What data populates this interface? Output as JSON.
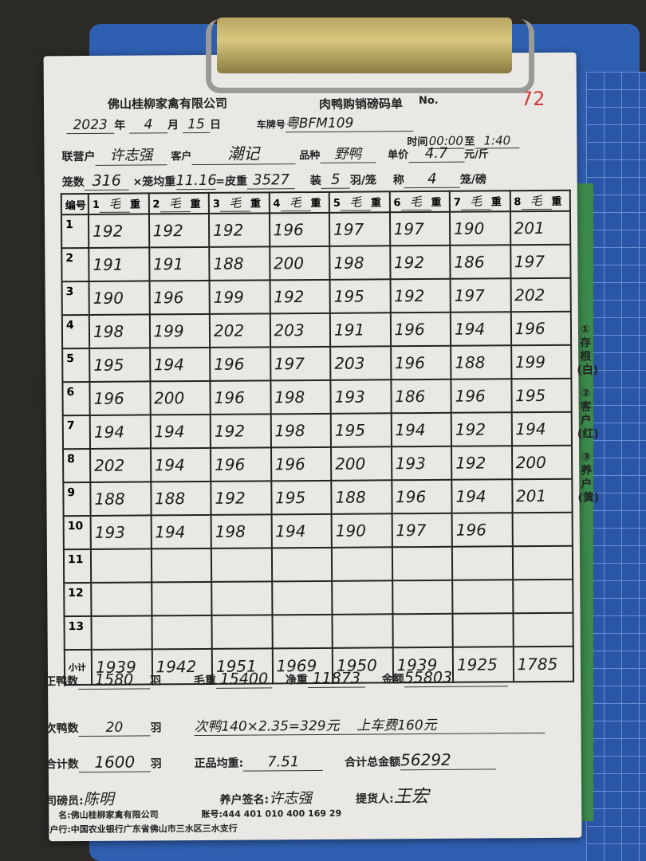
{
  "form": {
    "company": "佛山桂柳家禽有限公司",
    "title": "肉鸭购销磅码单",
    "serial_prefix": "No.",
    "serial_visible": "72",
    "labels": {
      "year": "年",
      "month": "月",
      "day": "日",
      "plate": "车牌号",
      "time": "时间",
      "to": "至",
      "partner": "联营户",
      "customer": "客户",
      "breed": "品种",
      "unit_price": "单价",
      "price_unit": "元/斤",
      "cages": "笼数",
      "avg_cage": "×笼均重",
      "tare": "=皮重",
      "load": "装",
      "per_cage": "羽/笼",
      "weigh": "称",
      "cage_per_weigh": "笼/磅"
    },
    "date": {
      "year": "2023",
      "month": "4",
      "day": "15"
    },
    "plate": "粤BFM109",
    "time_from": "00:00",
    "time_to": "1:40",
    "partner": "许志强",
    "customer": "潮记",
    "breed": "野鸭",
    "unit_price": "4.7",
    "cages": "316",
    "avg_cage_weight": "11.16",
    "tare": "3527",
    "birds_per_cage": "5",
    "cages_per_weigh": "4"
  },
  "table": {
    "row_header": "编号",
    "columns": [
      {
        "num": "1",
        "mark": "毛",
        "label": "重"
      },
      {
        "num": "2",
        "mark": "毛",
        "label": "重"
      },
      {
        "num": "3",
        "mark": "毛",
        "label": "重"
      },
      {
        "num": "4",
        "mark": "毛",
        "label": "重"
      },
      {
        "num": "5",
        "mark": "毛",
        "label": "重"
      },
      {
        "num": "6",
        "mark": "毛",
        "label": "重"
      },
      {
        "num": "7",
        "mark": "毛",
        "label": "重"
      },
      {
        "num": "8",
        "mark": "毛",
        "label": "重"
      }
    ],
    "rows": [
      {
        "n": "1",
        "v": [
          "192",
          "192",
          "192",
          "196",
          "197",
          "197",
          "190",
          "201"
        ]
      },
      {
        "n": "2",
        "v": [
          "191",
          "191",
          "188",
          "200",
          "198",
          "192",
          "186",
          "197"
        ]
      },
      {
        "n": "3",
        "v": [
          "190",
          "196",
          "199",
          "192",
          "195",
          "192",
          "197",
          "202"
        ]
      },
      {
        "n": "4",
        "v": [
          "198",
          "199",
          "202",
          "203",
          "191",
          "196",
          "194",
          "196"
        ]
      },
      {
        "n": "5",
        "v": [
          "195",
          "194",
          "196",
          "197",
          "203",
          "196",
          "188",
          "199"
        ]
      },
      {
        "n": "6",
        "v": [
          "196",
          "200",
          "196",
          "198",
          "193",
          "186",
          "196",
          "195"
        ]
      },
      {
        "n": "7",
        "v": [
          "194",
          "194",
          "192",
          "198",
          "195",
          "194",
          "192",
          "194"
        ]
      },
      {
        "n": "8",
        "v": [
          "202",
          "194",
          "196",
          "196",
          "200",
          "193",
          "192",
          "200"
        ]
      },
      {
        "n": "9",
        "v": [
          "188",
          "188",
          "192",
          "195",
          "188",
          "196",
          "194",
          "201"
        ]
      },
      {
        "n": "10",
        "v": [
          "193",
          "194",
          "198",
          "194",
          "190",
          "197",
          "196",
          ""
        ]
      },
      {
        "n": "11",
        "v": [
          "",
          "",
          "",
          "",
          "",
          "",
          "",
          ""
        ]
      },
      {
        "n": "12",
        "v": [
          "",
          "",
          "",
          "",
          "",
          "",
          "",
          ""
        ]
      },
      {
        "n": "13",
        "v": [
          "",
          "",
          "",
          "",
          "",
          "",
          "",
          ""
        ]
      }
    ],
    "subtotal_label": "小计",
    "subtotals": [
      "1939",
      "1942",
      "1951",
      "1969",
      "1950",
      "1939",
      "1925",
      "1785"
    ]
  },
  "side_note": [
    "①存根(白)",
    "②客户(红)",
    "③养户(黄)"
  ],
  "summary": {
    "good_ducks_label": "正鸭数",
    "good_ducks": "1580",
    "unit_bird": "羽",
    "gross_label": "毛重",
    "gross": "15400",
    "net_label": "净重",
    "net": "11873",
    "amount_label": "金额",
    "amount": "55803",
    "sub_ducks_label": "次鸭数",
    "sub_ducks": "20",
    "note": "次鸭140×2.35=329元    上车费160元",
    "total_label": "合计数",
    "total": "1600",
    "avg_label": "正品均重:",
    "avg": "7.51",
    "grand_label": "合计总金额",
    "grand": "56292",
    "weigher_label": "司磅员:",
    "weigher": "陈明",
    "farmer_sign_label": "养户签名:",
    "farmer_sign": "许志强",
    "picker_label": "提货人:",
    "picker": "王宏"
  },
  "bank": {
    "name_label": "户　名:",
    "name": "佛山桂柳家禽有限公司",
    "account_label": "账号:",
    "account": "444 401 010 400 169 29",
    "bank_label": "开户行:",
    "bank": "中国农业银行广东省佛山市三水区三水支行"
  },
  "colors": {
    "paper": "#e9e8e4",
    "clipboard": "#2f5fb0",
    "ink": "#1c1c1c",
    "serial": "#d23a3a"
  }
}
